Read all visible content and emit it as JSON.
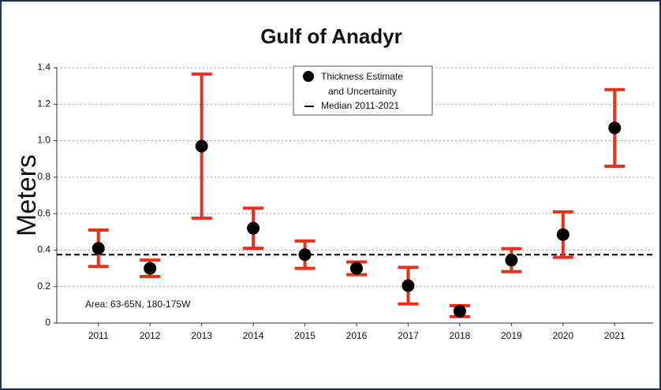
{
  "chart_data": {
    "type": "errorbar",
    "title": "Gulf of Anadyr",
    "ylabel": "Meters",
    "annotation": "Area: 63-65N, 180-175W",
    "categories": [
      "2011",
      "2012",
      "2013",
      "2014",
      "2015",
      "2016",
      "2017",
      "2018",
      "2019",
      "2020",
      "2021"
    ],
    "values": [
      0.41,
      0.3,
      0.97,
      0.52,
      0.375,
      0.3,
      0.205,
      0.065,
      0.345,
      0.485,
      1.07
    ],
    "errors": [
      0.1,
      0.045,
      0.395,
      0.11,
      0.075,
      0.035,
      0.1,
      0.03,
      0.063,
      0.125,
      0.21
    ],
    "median": 0.375,
    "legend": [
      [
        "Thickness Estimate",
        "and Uncertainity"
      ],
      [
        "Median 2011-2021"
      ]
    ],
    "color": "#e8321e",
    "marker_color": "#000000",
    "ylim": [
      0,
      1.4
    ],
    "yticks": [
      0,
      0.2,
      0.4,
      0.6,
      0.8,
      {
        "value": 1,
        "label": "1.0"
      },
      1.2,
      1.4
    ],
    "grid": true
  }
}
